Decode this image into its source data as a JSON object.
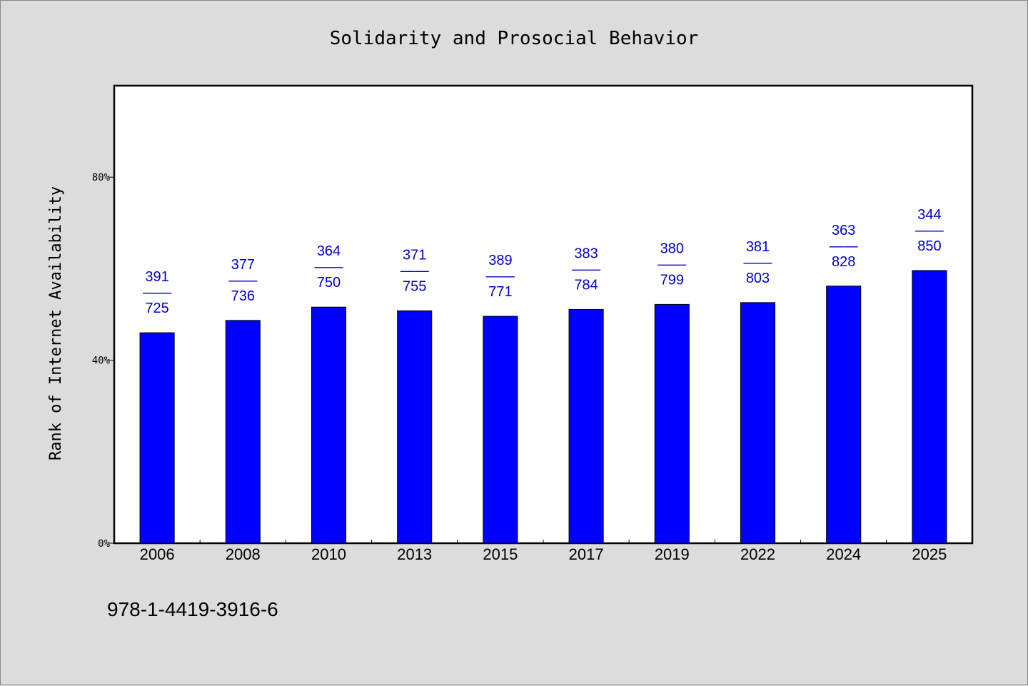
{
  "chart_data": {
    "type": "bar",
    "title": "Solidarity and Prosocial Behavior",
    "ylabel": "Rank of Internet Availability",
    "xlabel": "",
    "categories": [
      "2006",
      "2008",
      "2010",
      "2013",
      "2015",
      "2017",
      "2019",
      "2022",
      "2024",
      "2025"
    ],
    "values": [
      0.46,
      0.487,
      0.516,
      0.508,
      0.496,
      0.511,
      0.522,
      0.526,
      0.562,
      0.596
    ],
    "top_labels": [
      "391",
      "377",
      "364",
      "371",
      "389",
      "383",
      "380",
      "381",
      "363",
      "344"
    ],
    "bottom_labels": [
      "725",
      "736",
      "750",
      "755",
      "771",
      "784",
      "799",
      "803",
      "828",
      "850"
    ],
    "label_separator": "——",
    "ylim": [
      0,
      1.0
    ],
    "yticks": [
      0,
      0.4,
      0.8
    ],
    "ytick_labels": [
      "0%",
      "40%",
      "80%"
    ],
    "grid": false,
    "bar_color": "#0000ff",
    "label_color": "#0000cc"
  },
  "footnote": "978-1-4419-3916-6"
}
